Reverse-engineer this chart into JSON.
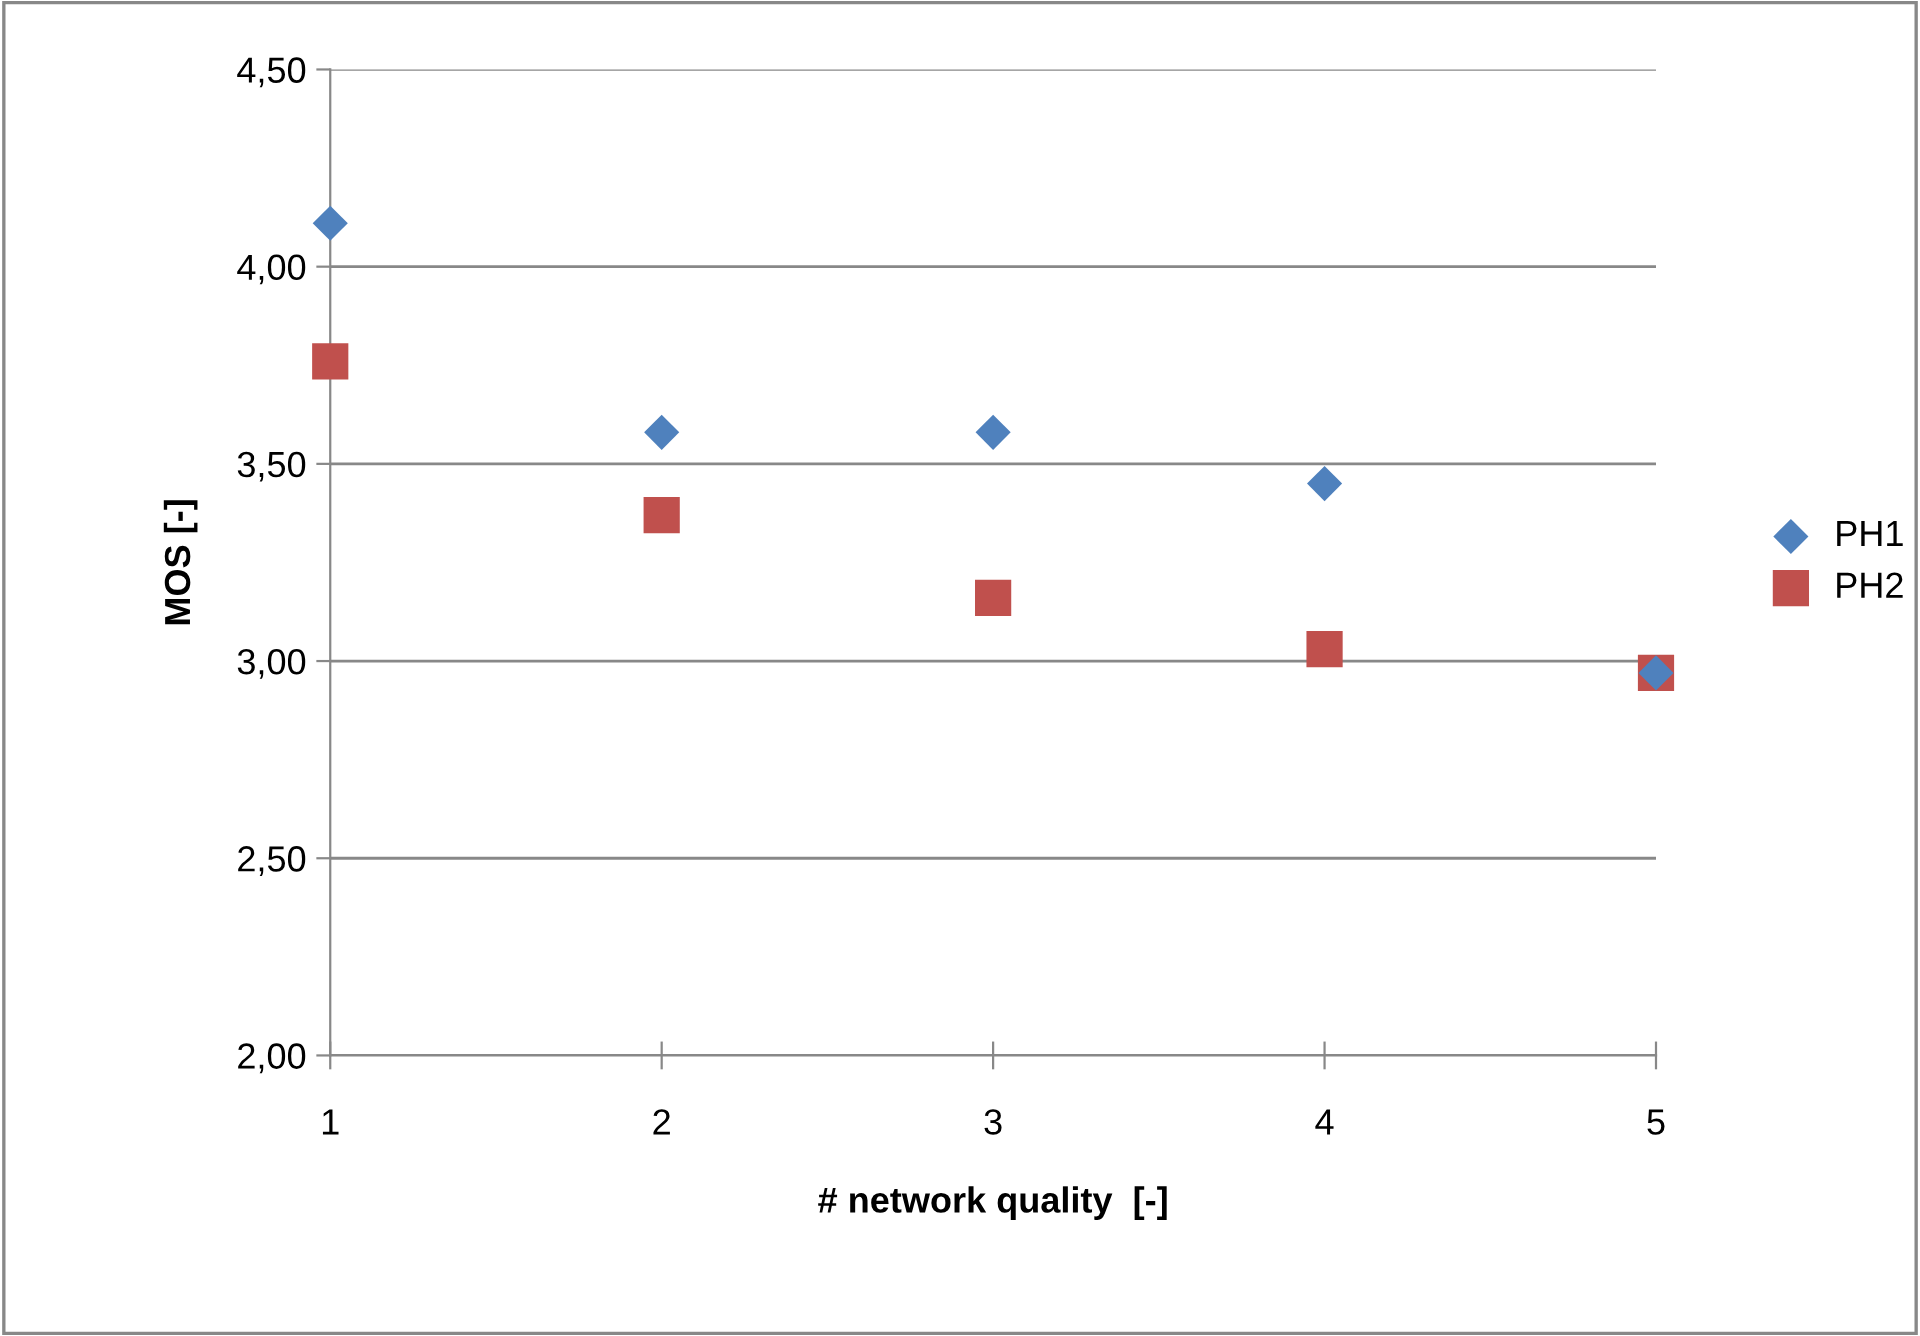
{
  "chart_data": {
    "type": "scatter",
    "xlabel": "# network quality  [-]",
    "ylabel": "MOS [-]",
    "x": [
      1,
      2,
      3,
      4,
      5
    ],
    "series": [
      {
        "name": "PH1",
        "color": "#4f81bd",
        "marker": "diamond",
        "values": [
          4.11,
          3.58,
          3.58,
          3.45,
          2.97
        ]
      },
      {
        "name": "PH2",
        "color": "#c0504d",
        "marker": "square",
        "values": [
          3.76,
          3.37,
          3.16,
          3.03,
          2.97
        ]
      }
    ],
    "xlim": [
      1,
      5
    ],
    "xticks": [
      1,
      2,
      3,
      4,
      5
    ],
    "ylim": [
      2.0,
      4.5
    ],
    "yticks": [
      {
        "value": 2.0,
        "label": "2,00"
      },
      {
        "value": 2.5,
        "label": "2,50"
      },
      {
        "value": 3.0,
        "label": "3,00"
      },
      {
        "value": 3.5,
        "label": "3,50"
      },
      {
        "value": 4.0,
        "label": "4,00"
      },
      {
        "value": 4.5,
        "label": "4,50"
      }
    ],
    "grid": "y",
    "legend": "right"
  }
}
